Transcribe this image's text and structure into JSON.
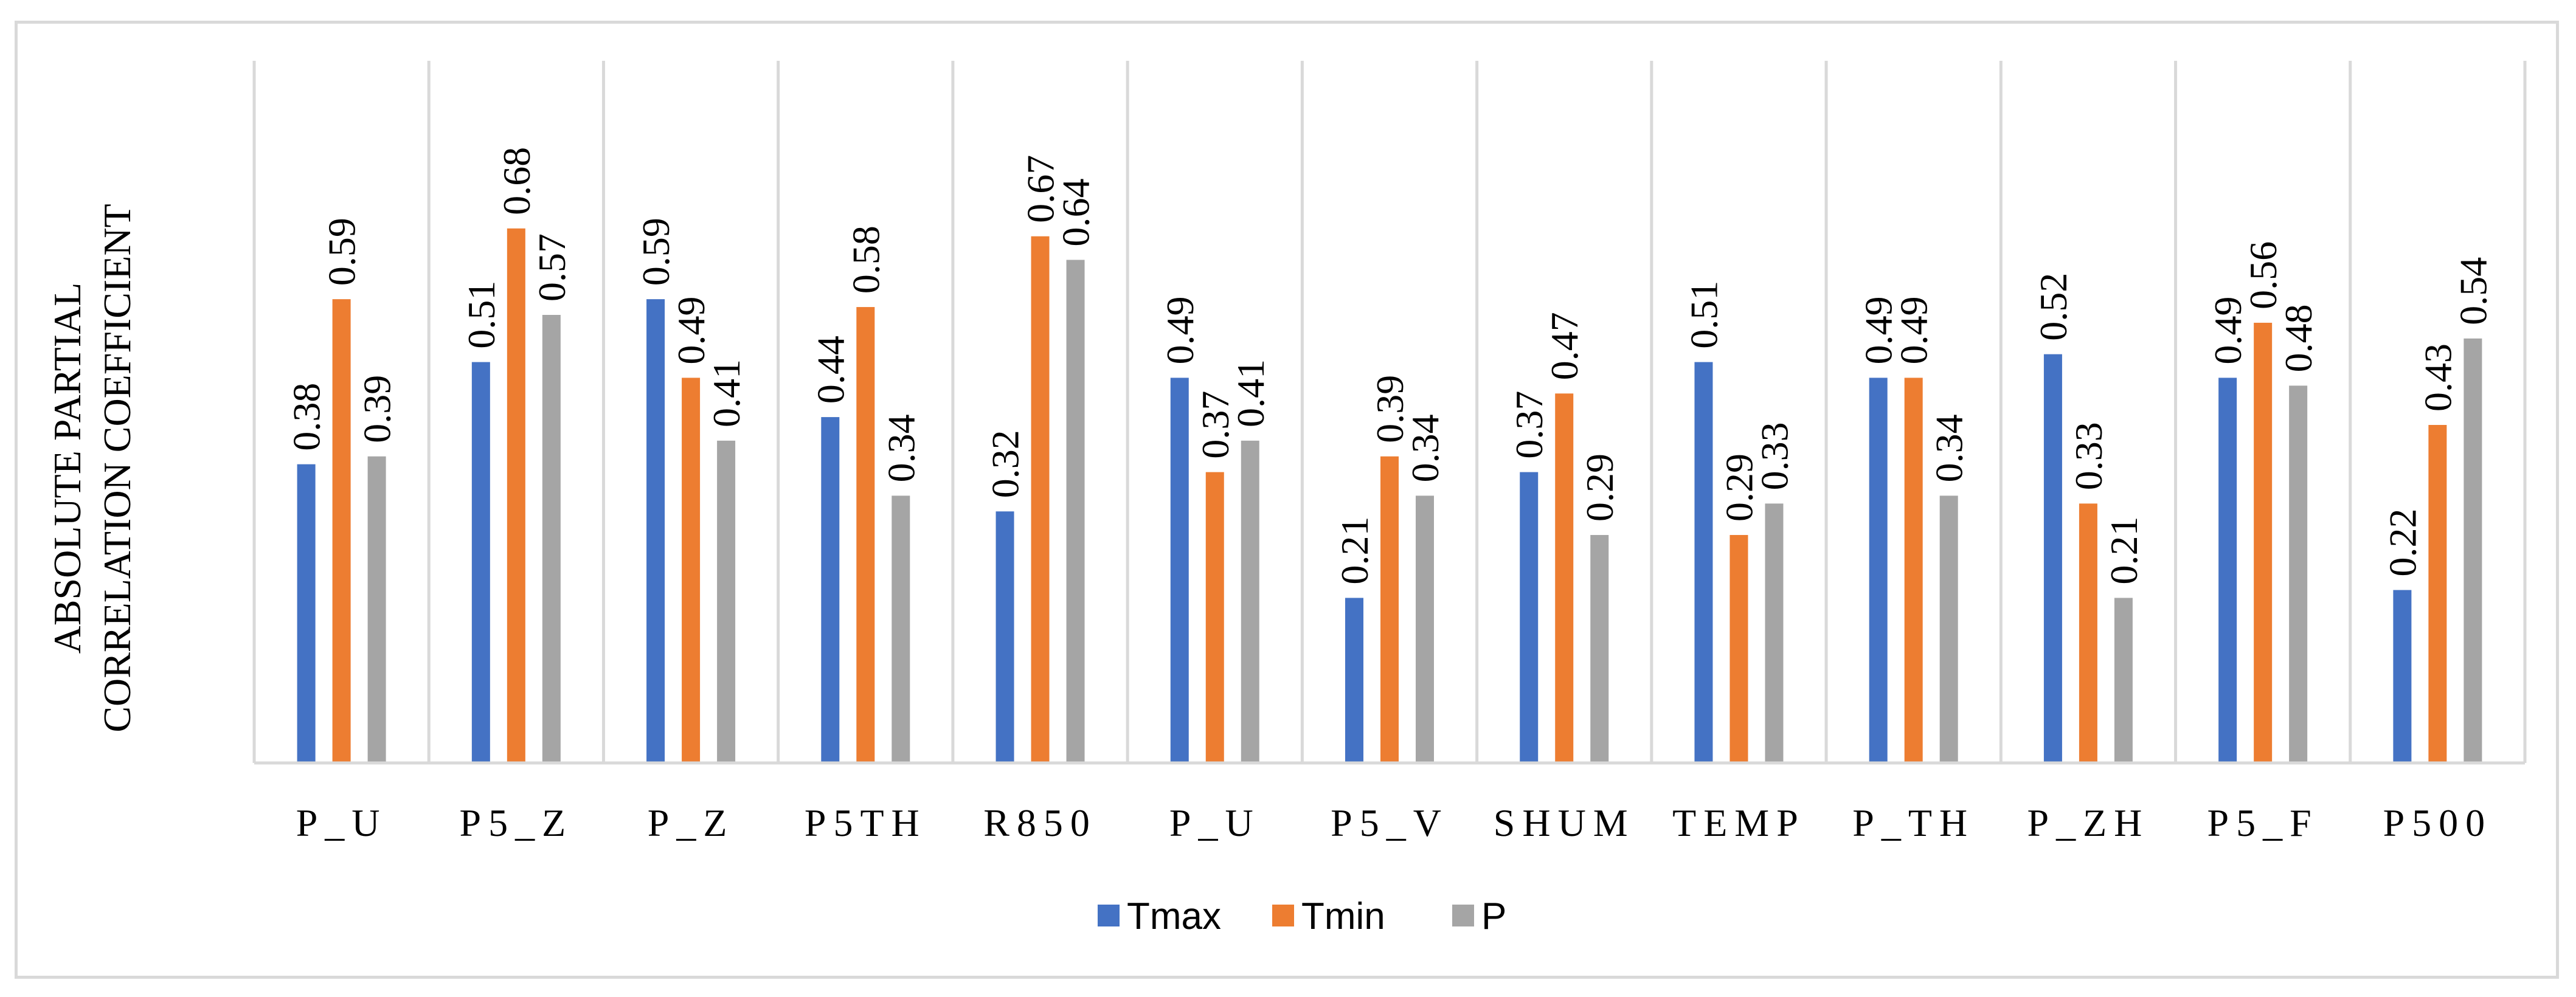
{
  "chart_data": {
    "type": "bar",
    "title": "",
    "xlabel": "",
    "ylabel_lines": [
      "ABSOLUTE PARTIAL",
      "CORRELATION COEFFICIENT"
    ],
    "ylim": [
      0,
      0.68
    ],
    "grid": "vertical category separators",
    "legend_position": "bottom-center",
    "categories": [
      "P_U",
      "P5_Z",
      "P_Z",
      "P5TH",
      "R850",
      "P_U",
      "P5_V",
      "SHUM",
      "TEMP",
      "P_TH",
      "P_ZH",
      "P5_F",
      "P500"
    ],
    "series": [
      {
        "name": "Tmax",
        "color": "#4472C4",
        "values": [
          0.38,
          0.51,
          0.59,
          0.44,
          0.32,
          0.49,
          0.21,
          0.37,
          0.51,
          0.49,
          0.52,
          0.49,
          0.22
        ],
        "labels": [
          "0.38",
          "0.51",
          "0.59",
          "0.44",
          "0.32",
          "0.49",
          "0.21",
          "0.37",
          "0.51",
          "0.49",
          "0.52",
          "0.49",
          "0.22"
        ]
      },
      {
        "name": "Tmin",
        "color": "#ED7D31",
        "values": [
          0.59,
          0.68,
          0.49,
          0.58,
          0.67,
          0.37,
          0.39,
          0.47,
          0.29,
          0.49,
          0.33,
          0.56,
          0.43
        ],
        "labels": [
          "0.59",
          "0.68",
          "0.49",
          "0.58",
          "0.67",
          "0.37",
          "0.39",
          "0.47",
          "0.29",
          "0.49",
          "0.33",
          "0.56",
          "0.43"
        ]
      },
      {
        "name": "P",
        "color": "#A5A5A5",
        "values": [
          0.39,
          0.57,
          0.41,
          0.34,
          0.64,
          0.41,
          0.34,
          0.29,
          0.33,
          0.34,
          0.21,
          0.48,
          0.54
        ],
        "labels": [
          "0.39",
          "0.57",
          "0.41",
          "0.34",
          "0.64",
          "0.41",
          "0.34",
          "0.29",
          "0.33",
          "0.34",
          "0.21",
          "0.48",
          "0.54"
        ]
      }
    ]
  }
}
